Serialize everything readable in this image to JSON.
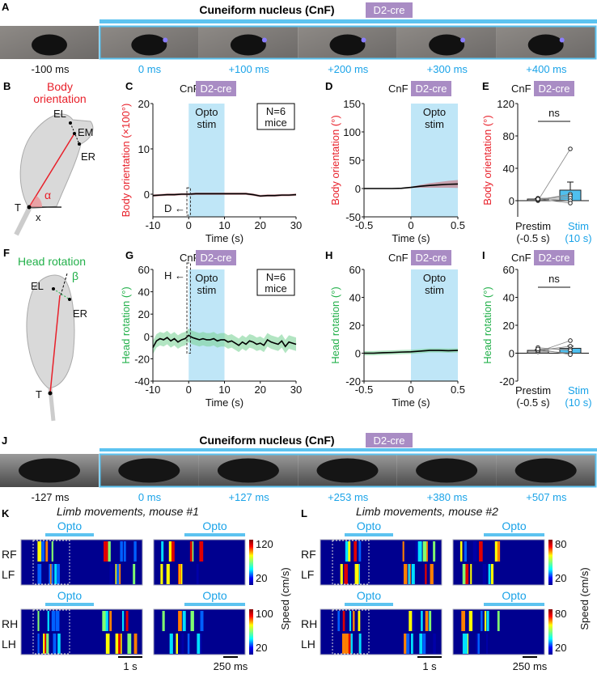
{
  "colors": {
    "body": "#e8202a",
    "head": "#22b04a",
    "opto": "#bfe6f7",
    "accent": "#1aa3e8",
    "badge": "#a98cc4"
  },
  "panel_labels": [
    "A",
    "B",
    "C",
    "D",
    "E",
    "F",
    "G",
    "H",
    "I",
    "J",
    "K",
    "L"
  ],
  "A": {
    "title": "Cuneiform nucleus (CnF)",
    "badge": "D2-cre",
    "frames": [
      "-100 ms",
      "0 ms",
      "+100 ms",
      "+200 ms",
      "+300 ms",
      "+400 ms"
    ]
  },
  "B": {
    "title1": "Body",
    "title2": "orientation",
    "EL": "EL",
    "EM": "EM",
    "ER": "ER",
    "T": "T",
    "alpha": "α",
    "x": "x"
  },
  "F": {
    "title": "Head rotation",
    "EL": "EL",
    "ER": "ER",
    "T": "T",
    "beta": "β"
  },
  "J": {
    "title": "Cuneiform nucleus (CnF)",
    "badge": "D2-cre",
    "frames": [
      "-127 ms",
      "0 ms",
      "+127 ms",
      "+253 ms",
      "+380 ms",
      "+507 ms"
    ]
  },
  "common": {
    "cnf": "CnF",
    "badge": "D2-cre",
    "opto1": "Opto",
    "opto2": "stim",
    "n1": "N=6",
    "n2": "mice",
    "time": "Time (s)",
    "ns": "ns",
    "prestim": "Prestim",
    "prestim2": "(-0.5 s)",
    "stim": "Stim",
    "stim2": "(10 s)",
    "D_arrow": "D ←",
    "H_arrow": "H ←"
  },
  "K": {
    "title": "Limb movements, mouse #1",
    "opto": "Opto",
    "rows": [
      "RF",
      "LF",
      "RH",
      "LH"
    ],
    "scale1": "1 s",
    "scale2": "250 ms",
    "cbar_top": [
      "120",
      "20"
    ],
    "cbar_bot": [
      "100",
      "20"
    ],
    "cbar_label": "Speed (cm/s)"
  },
  "L": {
    "title": "Limb movements, mouse #2",
    "opto": "Opto",
    "rows": [
      "RF",
      "LF",
      "RH",
      "LH"
    ],
    "scale1": "1 s",
    "scale2": "250 ms",
    "cbar_top": [
      "80",
      "20"
    ],
    "cbar_bot": [
      "80",
      "20"
    ],
    "cbar_label": "Speed (cm/s)"
  },
  "chart_data": [
    {
      "id": "C",
      "type": "line",
      "ylabel": "Body orientation (×100°)",
      "xlabel": "Time (s)",
      "xlim": [
        -10,
        30
      ],
      "ylim": [
        -5,
        20
      ],
      "xticks": [
        -10,
        0,
        10,
        20,
        30
      ],
      "yticks": [
        0,
        10,
        20
      ],
      "opto": [
        0,
        10
      ],
      "x": [
        -10,
        -8,
        -6,
        -4,
        -2,
        0,
        2,
        4,
        6,
        8,
        10,
        12,
        14,
        16,
        18,
        20,
        22,
        24,
        26,
        28,
        30
      ],
      "y": [
        -0.3,
        -0.2,
        -0.1,
        -0.1,
        0,
        0,
        0.1,
        0.1,
        0.1,
        0.1,
        0.1,
        0.1,
        0.1,
        0.1,
        -0.1,
        -0.4,
        -0.3,
        -0.3,
        -0.2,
        -0.2,
        -0.1
      ],
      "sem": 0.25
    },
    {
      "id": "D",
      "type": "line",
      "ylabel": "Body orientation (°)",
      "xlabel": "Time (s)",
      "xlim": [
        -0.5,
        0.5
      ],
      "ylim": [
        -50,
        150
      ],
      "xticks": [
        -0.5,
        0,
        0.5
      ],
      "yticks": [
        -50,
        0,
        50,
        100,
        150
      ],
      "opto": [
        0,
        0.5
      ],
      "x": [
        -0.5,
        -0.4,
        -0.3,
        -0.2,
        -0.1,
        0,
        0.1,
        0.2,
        0.3,
        0.4,
        0.5
      ],
      "y": [
        0,
        0,
        0,
        0,
        0.5,
        2,
        4,
        5.5,
        6.5,
        7.5,
        8
      ],
      "sem_scale": [
        0,
        0,
        0,
        0,
        0.5,
        1,
        2.5,
        4,
        5,
        6,
        7
      ]
    },
    {
      "id": "E",
      "type": "bar",
      "ylabel": "Body orientation (°)",
      "ylim": [
        -20,
        120
      ],
      "yticks": [
        0,
        40,
        80,
        120
      ],
      "categories": [
        "Prestim (-0.5 s)",
        "Stim (10 s)"
      ],
      "means": [
        2,
        13
      ],
      "err": [
        0.5,
        10
      ],
      "points": [
        [
          0,
          1,
          2,
          3,
          3,
          2
        ],
        [
          64,
          8,
          6,
          3,
          0,
          -3
        ]
      ],
      "sig": "ns"
    },
    {
      "id": "G",
      "type": "line",
      "ylabel": "Head rotation (°)",
      "xlabel": "Time (s)",
      "xlim": [
        -10,
        30
      ],
      "ylim": [
        -40,
        60
      ],
      "xticks": [
        -10,
        0,
        10,
        20,
        30
      ],
      "yticks": [
        -40,
        -20,
        0,
        20,
        40,
        60
      ],
      "opto": [
        0,
        10
      ],
      "x": [
        -10,
        -9,
        -8,
        -7,
        -6,
        -5,
        -4,
        -3,
        -2,
        -1,
        0,
        1,
        2,
        3,
        4,
        5,
        6,
        7,
        8,
        9,
        10,
        11,
        12,
        13,
        14,
        15,
        16,
        17,
        18,
        19,
        20,
        21,
        22,
        23,
        24,
        25,
        26,
        27,
        28,
        29,
        30
      ],
      "y": [
        -10,
        -4,
        -2,
        -3,
        -1,
        -4,
        -2,
        -5,
        -3,
        -2,
        1,
        -1,
        -2,
        -3,
        -2,
        -3,
        -3,
        -2,
        -4,
        -3,
        -3,
        -5,
        -4,
        -6,
        -8,
        -5,
        -7,
        -4,
        -5,
        -7,
        -6,
        -8,
        -3,
        -5,
        -6,
        -7,
        -4,
        -9,
        -5,
        -6,
        -7
      ],
      "sem": 6
    },
    {
      "id": "H",
      "type": "line",
      "ylabel": "Head rotation (°)",
      "xlabel": "Time (s)",
      "xlim": [
        -0.5,
        0.5
      ],
      "ylim": [
        -20,
        60
      ],
      "xticks": [
        -0.5,
        0,
        0.5
      ],
      "yticks": [
        -20,
        0,
        20,
        40,
        60
      ],
      "opto": [
        0,
        0.5
      ],
      "x": [
        -0.5,
        -0.4,
        -0.3,
        -0.2,
        -0.1,
        0,
        0.1,
        0.2,
        0.3,
        0.4,
        0.5
      ],
      "y": [
        0,
        0,
        0.3,
        0.5,
        0.8,
        1,
        1.5,
        2,
        2,
        1.8,
        2
      ],
      "sem": 1.5
    },
    {
      "id": "I",
      "type": "bar",
      "ylabel": "Head rotation (°)",
      "ylim": [
        -20,
        60
      ],
      "yticks": [
        -20,
        0,
        20,
        40,
        60
      ],
      "categories": [
        "Prestim (-0.5 s)",
        "Stim (10 s)"
      ],
      "means": [
        2,
        3.5
      ],
      "err": [
        0.5,
        1.5
      ],
      "points": [
        [
          1,
          2,
          3,
          4,
          2,
          3
        ],
        [
          9,
          5,
          3,
          2,
          0,
          -1
        ]
      ],
      "sig": "ns"
    }
  ]
}
